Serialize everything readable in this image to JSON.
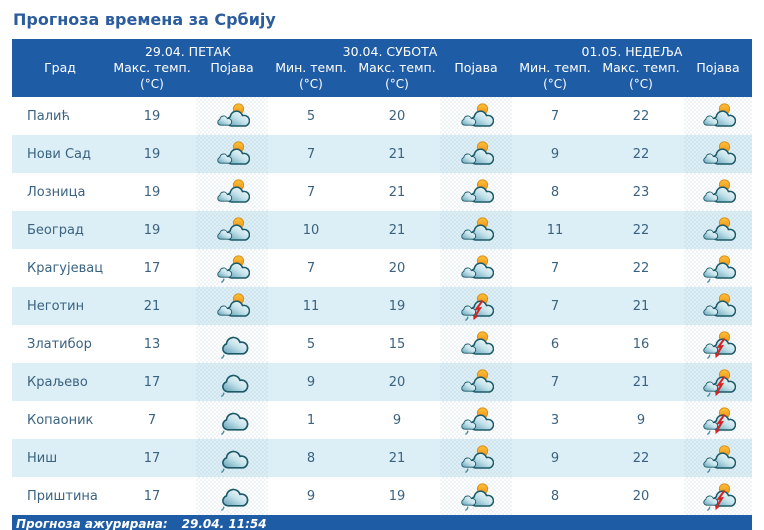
{
  "page": {
    "title": "Прогноза времена за Србију"
  },
  "colors": {
    "header_bg": "#1e5ca6",
    "alt_row_bg": "#dceef6",
    "cell_text": "#3b6380",
    "title_text": "#2a5c9e",
    "sun": "#f3a61e",
    "cloud_outline": "#1d5a68",
    "lightning": "#d62222"
  },
  "table": {
    "day_headers": [
      {
        "label": "29.04. ПЕТАК"
      },
      {
        "label": "30.04. СУБОТА"
      },
      {
        "label": "01.05. НЕДЕЉА"
      }
    ],
    "column_headers": [
      {
        "label": "Град",
        "unit": ""
      },
      {
        "label": "Макс. темп.",
        "unit": "(°C)"
      },
      {
        "label": "Појава",
        "unit": ""
      },
      {
        "label": "Мин. темп.",
        "unit": "(°C)"
      },
      {
        "label": "Макс. темп.",
        "unit": "(°C)"
      },
      {
        "label": "Појава",
        "unit": ""
      },
      {
        "label": "Мин. темп.",
        "unit": "(°C)"
      },
      {
        "label": "Макс. темп.",
        "unit": "(°C)"
      },
      {
        "label": "Појава",
        "unit": ""
      }
    ],
    "rows": [
      {
        "city": "Палић",
        "fri_max": 19,
        "fri_icon": "partly-cloudy",
        "sat_min": 5,
        "sat_max": 20,
        "sat_icon": "partly-cloudy",
        "sun_min": 7,
        "sun_max": 22,
        "sun_icon": "partly-cloudy"
      },
      {
        "city": "Нови Сад",
        "fri_max": 19,
        "fri_icon": "partly-cloudy",
        "sat_min": 7,
        "sat_max": 21,
        "sat_icon": "partly-cloudy",
        "sun_min": 9,
        "sun_max": 22,
        "sun_icon": "partly-cloudy"
      },
      {
        "city": "Лозница",
        "fri_max": 19,
        "fri_icon": "partly-cloudy",
        "sat_min": 7,
        "sat_max": 21,
        "sat_icon": "partly-cloudy",
        "sun_min": 8,
        "sun_max": 23,
        "sun_icon": "partly-cloudy"
      },
      {
        "city": "Београд",
        "fri_max": 19,
        "fri_icon": "partly-cloudy",
        "sat_min": 10,
        "sat_max": 21,
        "sat_icon": "partly-cloudy",
        "sun_min": 11,
        "sun_max": 22,
        "sun_icon": "partly-cloudy"
      },
      {
        "city": "Крагујевац",
        "fri_max": 17,
        "fri_icon": "partly-cloudy-drizzle",
        "sat_min": 7,
        "sat_max": 20,
        "sat_icon": "partly-cloudy",
        "sun_min": 7,
        "sun_max": 22,
        "sun_icon": "partly-cloudy-drizzle"
      },
      {
        "city": "Неготин",
        "fri_max": 21,
        "fri_icon": "partly-cloudy",
        "sat_min": 11,
        "sat_max": 19,
        "sat_icon": "thunderstorm",
        "sun_min": 7,
        "sun_max": 21,
        "sun_icon": "partly-cloudy"
      },
      {
        "city": "Златибор",
        "fri_max": 13,
        "fri_icon": "cloudy-drizzle",
        "sat_min": 5,
        "sat_max": 15,
        "sat_icon": "partly-cloudy",
        "sun_min": 6,
        "sun_max": 16,
        "sun_icon": "thunderstorm"
      },
      {
        "city": "Краљево",
        "fri_max": 17,
        "fri_icon": "cloudy-drizzle",
        "sat_min": 9,
        "sat_max": 20,
        "sat_icon": "partly-cloudy",
        "sun_min": 7,
        "sun_max": 21,
        "sun_icon": "thunderstorm"
      },
      {
        "city": "Копаоник",
        "fri_max": 7,
        "fri_icon": "cloudy-drizzle",
        "sat_min": 1,
        "sat_max": 9,
        "sat_icon": "partly-cloudy-drizzle",
        "sun_min": 3,
        "sun_max": 9,
        "sun_icon": "thunderstorm"
      },
      {
        "city": "Ниш",
        "fri_max": 17,
        "fri_icon": "cloudy-drizzle",
        "sat_min": 8,
        "sat_max": 21,
        "sat_icon": "partly-cloudy-drizzle",
        "sun_min": 9,
        "sun_max": 22,
        "sun_icon": "partly-cloudy-drizzle"
      },
      {
        "city": "Приштина",
        "fri_max": 17,
        "fri_icon": "cloudy-drizzle",
        "sat_min": 9,
        "sat_max": 19,
        "sat_icon": "partly-cloudy-drizzle",
        "sun_min": 8,
        "sun_max": 20,
        "sun_icon": "thunderstorm"
      }
    ]
  },
  "footer": {
    "label": "Прогноза ажурирана:",
    "value": "29.04. 11:54"
  }
}
